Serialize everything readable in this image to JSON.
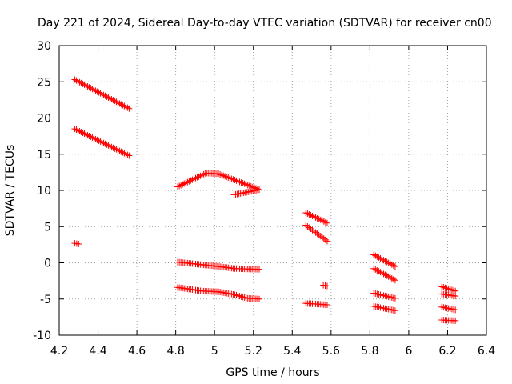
{
  "chart_data": {
    "type": "scatter",
    "title": "Day 221 of 2024, Sidereal Day-to-day VTEC variation (SDTVAR) for receiver cn00",
    "xlabel": "GPS time / hours",
    "ylabel": "SDTVAR / TECUs",
    "xlim": [
      4.2,
      6.4
    ],
    "ylim": [
      -10,
      30
    ],
    "xticks": [
      4.2,
      4.4,
      4.6,
      4.8,
      5,
      5.2,
      5.4,
      5.6,
      5.8,
      6,
      6.2,
      6.4
    ],
    "xtick_labels": [
      "4.2",
      "4.4",
      "4.6",
      "4.8",
      "5",
      "5.2",
      "5.4",
      "5.6",
      "5.8",
      "6",
      "6.2",
      "6.4"
    ],
    "yticks": [
      -10,
      -5,
      0,
      5,
      10,
      15,
      20,
      25,
      30
    ],
    "ytick_labels": [
      "-10",
      "-5",
      "0",
      "5",
      "10",
      "15",
      "20",
      "25",
      "30"
    ],
    "grid": true,
    "marker": "plus",
    "color": "#ff0000",
    "segments": [
      {
        "x_start": 4.28,
        "x_end": 4.56,
        "step": 0.00833,
        "y": [
          [
            0,
            25.3
          ],
          [
            1,
            21.3
          ]
        ]
      },
      {
        "x_start": 4.28,
        "x_end": 4.56,
        "step": 0.00833,
        "y": [
          [
            0,
            18.5
          ],
          [
            1,
            14.8
          ]
        ]
      },
      {
        "x_start": 4.28,
        "x_end": 4.3,
        "step": 0.01,
        "y": [
          [
            0,
            2.7
          ],
          [
            1,
            2.6
          ]
        ]
      },
      {
        "x_start": 4.81,
        "x_end": 5.23,
        "step": 0.00833,
        "y": [
          [
            0,
            10.5
          ],
          [
            0.35,
            12.4
          ],
          [
            0.5,
            12.3
          ],
          [
            0.8,
            11.0
          ],
          [
            1,
            10.1
          ]
        ]
      },
      {
        "x_start": 5.1,
        "x_end": 5.23,
        "step": 0.00833,
        "y": [
          [
            0,
            9.4
          ],
          [
            1,
            10.1
          ]
        ]
      },
      {
        "x_start": 4.81,
        "x_end": 5.23,
        "step": 0.00833,
        "y": [
          [
            0,
            0.1
          ],
          [
            0.5,
            -0.5
          ],
          [
            0.7,
            -0.8
          ],
          [
            1,
            -0.9
          ]
        ]
      },
      {
        "x_start": 4.81,
        "x_end": 5.23,
        "step": 0.00833,
        "y": [
          [
            0,
            -3.4
          ],
          [
            0.3,
            -3.9
          ],
          [
            0.5,
            -4.0
          ],
          [
            0.7,
            -4.4
          ],
          [
            0.85,
            -4.9
          ],
          [
            1,
            -5.0
          ]
        ]
      },
      {
        "x_start": 5.47,
        "x_end": 5.58,
        "step": 0.00833,
        "y": [
          [
            0,
            6.9
          ],
          [
            1,
            5.5
          ]
        ]
      },
      {
        "x_start": 5.47,
        "x_end": 5.58,
        "step": 0.00833,
        "y": [
          [
            0,
            5.2
          ],
          [
            1,
            3.0
          ]
        ]
      },
      {
        "x_start": 5.56,
        "x_end": 5.58,
        "step": 0.01,
        "y": [
          [
            0,
            -3.1
          ],
          [
            1,
            -3.2
          ]
        ]
      },
      {
        "x_start": 5.47,
        "x_end": 5.58,
        "step": 0.00833,
        "y": [
          [
            0,
            -5.6
          ],
          [
            1,
            -5.8
          ]
        ]
      },
      {
        "x_start": 5.82,
        "x_end": 5.93,
        "step": 0.00833,
        "y": [
          [
            0,
            1.1
          ],
          [
            1,
            -0.5
          ]
        ]
      },
      {
        "x_start": 5.82,
        "x_end": 5.93,
        "step": 0.00833,
        "y": [
          [
            0,
            -0.8
          ],
          [
            1,
            -2.4
          ]
        ]
      },
      {
        "x_start": 5.82,
        "x_end": 5.93,
        "step": 0.00833,
        "y": [
          [
            0,
            -4.2
          ],
          [
            1,
            -4.9
          ]
        ]
      },
      {
        "x_start": 5.82,
        "x_end": 5.93,
        "step": 0.00833,
        "y": [
          [
            0,
            -6.0
          ],
          [
            1,
            -6.6
          ]
        ]
      },
      {
        "x_start": 6.17,
        "x_end": 6.24,
        "step": 0.00833,
        "y": [
          [
            0,
            -3.3
          ],
          [
            1,
            -3.9
          ]
        ]
      },
      {
        "x_start": 6.17,
        "x_end": 6.24,
        "step": 0.00833,
        "y": [
          [
            0,
            -4.3
          ],
          [
            1,
            -4.6
          ]
        ]
      },
      {
        "x_start": 6.17,
        "x_end": 6.24,
        "step": 0.00833,
        "y": [
          [
            0,
            -6.1
          ],
          [
            1,
            -6.5
          ]
        ]
      },
      {
        "x_start": 6.17,
        "x_end": 6.24,
        "step": 0.00833,
        "y": [
          [
            0,
            -7.9
          ],
          [
            1,
            -8.0
          ]
        ]
      }
    ]
  }
}
